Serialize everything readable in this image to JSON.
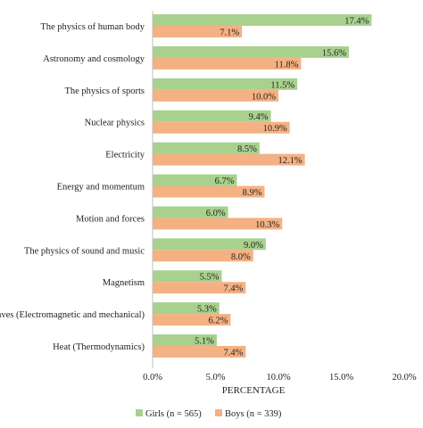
{
  "chart_data": {
    "type": "bar",
    "orientation": "horizontal",
    "categories": [
      "The physics of human body",
      "Astronomy and cosmology",
      "The physics of sports",
      "Nuclear physics",
      "Electricity",
      "Energy and momentum",
      "Motion and forces",
      "The physics of sound and music",
      "Magnetism",
      "Waves (Electromagnetic and mechanical)",
      "Heat (Thermodynamics)"
    ],
    "series": [
      {
        "name": "Girls (n = 565)",
        "color": "#a9d18e",
        "values": [
          17.4,
          15.6,
          11.5,
          9.4,
          8.5,
          6.7,
          6.0,
          9.0,
          5.5,
          5.3,
          5.1
        ],
        "labels": [
          "17.4%",
          "15.6%",
          "11.5%",
          "9.4%",
          "8.5%",
          "6.7%",
          "6.0%",
          "9.0%",
          "5.5%",
          "5.3%",
          "5.1%"
        ]
      },
      {
        "name": "Boys (n = 339)",
        "color": "#f4b183",
        "values": [
          7.1,
          11.8,
          10.0,
          10.9,
          12.1,
          8.9,
          10.3,
          8.0,
          7.4,
          6.2,
          7.4
        ],
        "labels": [
          "7.1%",
          "11.8%",
          "10.0%",
          "10.9%",
          "12.1%",
          "8.9%",
          "10.3%",
          "8.0%",
          "7.4%",
          "6.2%",
          "7.4%"
        ]
      }
    ],
    "xlabel": "PERCENTAGE",
    "xlim": [
      0,
      20
    ],
    "xticks": [
      "0.0%",
      "5.0%",
      "10.0%",
      "15.0%",
      "20.0%"
    ],
    "grid": false,
    "legend_position": "bottom"
  }
}
